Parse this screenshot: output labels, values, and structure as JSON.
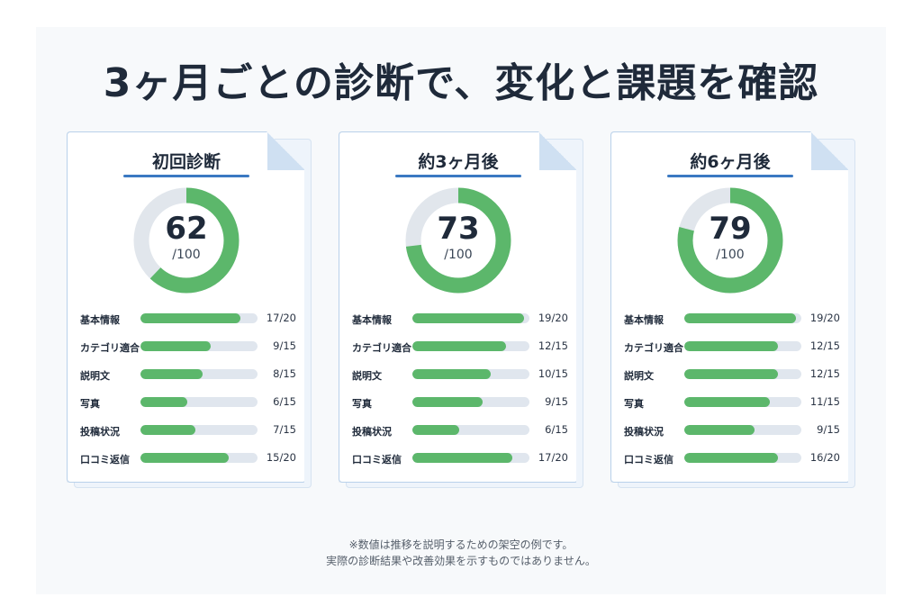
{
  "title": "3ヶ月ごとの診断で、変化と課題を確認",
  "colors": {
    "accent_bar": "#5cb76b",
    "track": "#e0e6ee",
    "underline": "#3b79c2"
  },
  "cards": [
    {
      "title": "初回診断",
      "score": "62",
      "score_max": "/100",
      "score_fraction": 0.62,
      "rows": [
        {
          "label": "基本情報",
          "value": "17/20",
          "fraction": 0.85
        },
        {
          "label": "カテゴリ適合",
          "value": "9/15",
          "fraction": 0.6
        },
        {
          "label": "説明文",
          "value": "8/15",
          "fraction": 0.533
        },
        {
          "label": "写真",
          "value": "6/15",
          "fraction": 0.4
        },
        {
          "label": "投稿状況",
          "value": "7/15",
          "fraction": 0.467
        },
        {
          "label": "口コミ返信",
          "value": "15/20",
          "fraction": 0.75
        }
      ]
    },
    {
      "title": "約3ヶ月後",
      "score": "73",
      "score_max": "/100",
      "score_fraction": 0.73,
      "rows": [
        {
          "label": "基本情報",
          "value": "19/20",
          "fraction": 0.95
        },
        {
          "label": "カテゴリ適合",
          "value": "12/15",
          "fraction": 0.8
        },
        {
          "label": "説明文",
          "value": "10/15",
          "fraction": 0.667
        },
        {
          "label": "写真",
          "value": "9/15",
          "fraction": 0.6
        },
        {
          "label": "投稿状況",
          "value": "6/15",
          "fraction": 0.4
        },
        {
          "label": "口コミ返信",
          "value": "17/20",
          "fraction": 0.85
        }
      ]
    },
    {
      "title": "約6ヶ月後",
      "score": "79",
      "score_max": "/100",
      "score_fraction": 0.79,
      "rows": [
        {
          "label": "基本情報",
          "value": "19/20",
          "fraction": 0.95
        },
        {
          "label": "カテゴリ適合",
          "value": "12/15",
          "fraction": 0.8
        },
        {
          "label": "説明文",
          "value": "12/15",
          "fraction": 0.8
        },
        {
          "label": "写真",
          "value": "11/15",
          "fraction": 0.733
        },
        {
          "label": "投稿状況",
          "value": "9/15",
          "fraction": 0.6
        },
        {
          "label": "口コミ返信",
          "value": "16/20",
          "fraction": 0.8
        }
      ]
    }
  ],
  "notes": [
    "※数値は推移を説明するための架空の例です。",
    "実際の診断結果や改善効果を示すものではありません。"
  ]
}
